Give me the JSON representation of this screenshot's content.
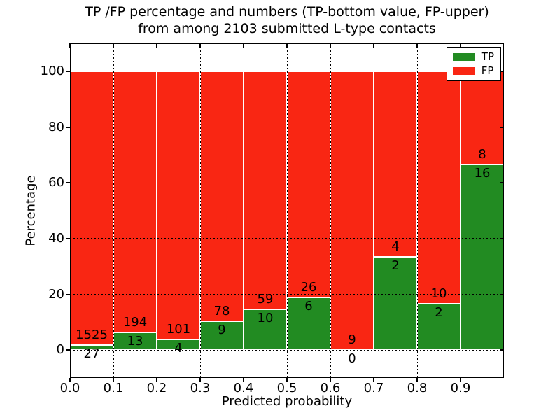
{
  "figure": {
    "background": "#ffffff"
  },
  "chart_data": {
    "type": "bar",
    "stacked": true,
    "normalized_to_percent": true,
    "title_line1": "TP /FP percentage and numbers (TP-bottom value, FP-upper)",
    "title_line2": "from among 2103 submitted L-type contacts",
    "xlabel": "Predicted probability",
    "ylabel": "Percentage",
    "x_tick_labels": [
      "0.0",
      "0.1",
      "0.2",
      "0.3",
      "0.4",
      "0.5",
      "0.6",
      "0.7",
      "0.8",
      "0.9"
    ],
    "y_ticks": [
      0,
      20,
      40,
      60,
      80,
      100
    ],
    "ylim": [
      -10,
      110
    ],
    "xlim": [
      0.0,
      1.0
    ],
    "bin_width": 0.1,
    "grid": "dotted-black",
    "legend_position": "upper-right",
    "total_contacts": 2103,
    "series": [
      {
        "name": "TP",
        "color": "#228B22",
        "counts": [
          27,
          13,
          4,
          9,
          10,
          6,
          0,
          2,
          2,
          16
        ]
      },
      {
        "name": "FP",
        "color": "#f92613",
        "counts": [
          1525,
          194,
          101,
          78,
          59,
          26,
          9,
          4,
          10,
          8
        ]
      }
    ],
    "tp_percent_per_bin": [
      1.74,
      6.28,
      3.81,
      10.34,
      14.49,
      18.75,
      0.0,
      33.33,
      16.67,
      66.67
    ]
  }
}
